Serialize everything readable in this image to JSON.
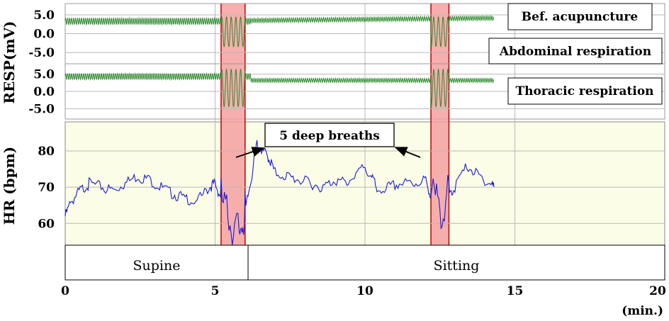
{
  "chart_data": {
    "type": "line",
    "x_axis": {
      "unit_label": "(min.)",
      "range": [
        0,
        20
      ],
      "ticks": [
        "0",
        "5",
        "10",
        "15",
        "20"
      ]
    },
    "resp": {
      "ylabel": "RESP(mV)",
      "range": [
        -8,
        8
      ],
      "ticks": [
        "5.0",
        "0.0",
        "-5.0"
      ],
      "color": "#2e8b2e",
      "traces": [
        {
          "label": "Bef. acupuncture",
          "start": 0,
          "end": 14.3
        },
        {
          "label": "Thoracic respiration",
          "start": 0,
          "end": 14.3
        }
      ],
      "extra_label": "Abdominal respiration"
    },
    "hr": {
      "ylabel": "HR (bpm)",
      "range": [
        54,
        88
      ],
      "ticks": [
        "80",
        "70",
        "60"
      ],
      "color": "#1a1adc",
      "background": "#fbfde6",
      "series": [
        [
          0,
          62
        ],
        [
          0.2,
          66
        ],
        [
          0.5,
          69
        ],
        [
          0.8,
          71
        ],
        [
          1.2,
          70
        ],
        [
          1.6,
          69
        ],
        [
          2.0,
          71
        ],
        [
          2.4,
          73
        ],
        [
          2.8,
          72
        ],
        [
          3.2,
          70
        ],
        [
          3.6,
          68
        ],
        [
          4.0,
          67
        ],
        [
          4.4,
          66
        ],
        [
          4.8,
          70
        ],
        [
          5.0,
          71
        ],
        [
          5.2,
          67
        ],
        [
          5.5,
          60
        ],
        [
          5.8,
          58
        ],
        [
          6.0,
          63
        ],
        [
          6.2,
          72
        ],
        [
          6.4,
          82
        ],
        [
          6.6,
          80
        ],
        [
          6.8,
          78
        ],
        [
          7.0,
          74
        ],
        [
          7.4,
          73
        ],
        [
          7.8,
          72
        ],
        [
          8.2,
          71
        ],
        [
          8.6,
          70
        ],
        [
          9.0,
          72
        ],
        [
          9.4,
          71
        ],
        [
          9.8,
          75
        ],
        [
          10.2,
          74
        ],
        [
          10.4,
          69
        ],
        [
          10.8,
          70
        ],
        [
          11.2,
          71
        ],
        [
          11.6,
          71
        ],
        [
          12.0,
          72
        ],
        [
          12.2,
          68
        ],
        [
          12.5,
          64
        ],
        [
          12.8,
          68
        ],
        [
          13.0,
          70
        ],
        [
          13.4,
          76
        ],
        [
          13.8,
          73
        ],
        [
          14.2,
          71
        ],
        [
          14.3,
          70
        ]
      ]
    },
    "deep_breath_periods": [
      [
        5.2,
        6.0
      ],
      [
        12.2,
        12.8
      ]
    ],
    "annotation": "5 deep breaths",
    "positions": [
      {
        "label": "Supine",
        "start": 0,
        "end": 6.1
      },
      {
        "label": "Sitting",
        "start": 6.1,
        "end": 20
      }
    ]
  }
}
